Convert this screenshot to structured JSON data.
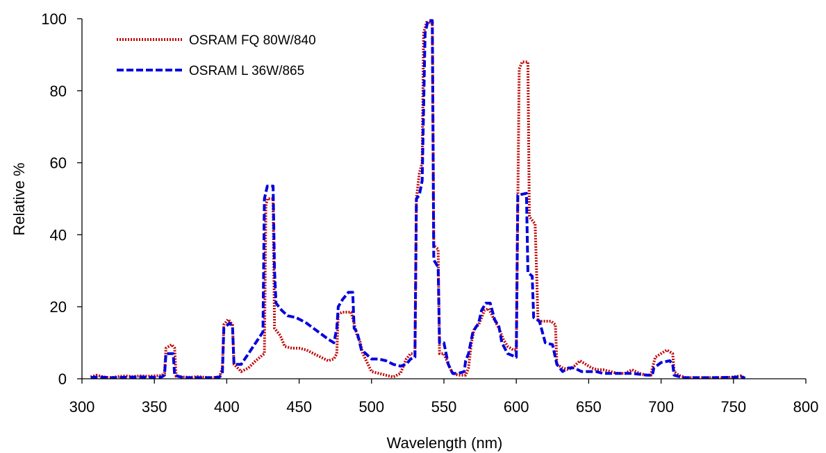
{
  "chart_data": {
    "type": "line",
    "title": "",
    "xlabel": "Wavelength (nm)",
    "ylabel": "Relative %",
    "xlim": [
      300,
      800
    ],
    "ylim": [
      0,
      100
    ],
    "xticks": [
      300,
      350,
      400,
      450,
      500,
      550,
      600,
      650,
      700,
      750,
      800
    ],
    "yticks": [
      0,
      20,
      40,
      60,
      80,
      100
    ],
    "grid": false,
    "legend_position": "top-left",
    "series": [
      {
        "name": "OSRAM FQ 80W/840",
        "color": "#c00000",
        "dash": "dotted",
        "points": [
          [
            306,
            0.5
          ],
          [
            310,
            1
          ],
          [
            315,
            0.5
          ],
          [
            320,
            0.3
          ],
          [
            325,
            0.6
          ],
          [
            330,
            0.8
          ],
          [
            335,
            0.6
          ],
          [
            340,
            0.8
          ],
          [
            345,
            0.7
          ],
          [
            350,
            0.8
          ],
          [
            355,
            0.9
          ],
          [
            357,
            1.5
          ],
          [
            358,
            8.5
          ],
          [
            362,
            9.5
          ],
          [
            364,
            8.5
          ],
          [
            365,
            0.7
          ],
          [
            370,
            0.5
          ],
          [
            375,
            0.4
          ],
          [
            380,
            0.6
          ],
          [
            385,
            0.4
          ],
          [
            390,
            0.3
          ],
          [
            395,
            0.5
          ],
          [
            397,
            3
          ],
          [
            398,
            15
          ],
          [
            401,
            16.5
          ],
          [
            404,
            15
          ],
          [
            405,
            4
          ],
          [
            410,
            2
          ],
          [
            415,
            3
          ],
          [
            420,
            5
          ],
          [
            426,
            7
          ],
          [
            427,
            48
          ],
          [
            428,
            50
          ],
          [
            432,
            50
          ],
          [
            433,
            14
          ],
          [
            437,
            12
          ],
          [
            440,
            9
          ],
          [
            445,
            8.5
          ],
          [
            450,
            8.5
          ],
          [
            455,
            8
          ],
          [
            460,
            7
          ],
          [
            465,
            6
          ],
          [
            470,
            5
          ],
          [
            474,
            5.5
          ],
          [
            476,
            7
          ],
          [
            477,
            18
          ],
          [
            480,
            18.5
          ],
          [
            486,
            18.5
          ],
          [
            490,
            12
          ],
          [
            492,
            10.5
          ],
          [
            494,
            7
          ],
          [
            497,
            4.5
          ],
          [
            500,
            2
          ],
          [
            505,
            1.5
          ],
          [
            510,
            1
          ],
          [
            515,
            0.5
          ],
          [
            520,
            1.5
          ],
          [
            524,
            5.5
          ],
          [
            527,
            7
          ],
          [
            530,
            7
          ],
          [
            531,
            50
          ],
          [
            533,
            57
          ],
          [
            535,
            60
          ],
          [
            536,
            96
          ],
          [
            538,
            99
          ],
          [
            542,
            99
          ],
          [
            543,
            37
          ],
          [
            546,
            36
          ],
          [
            547,
            7
          ],
          [
            550,
            7
          ],
          [
            553,
            4
          ],
          [
            556,
            1.5
          ],
          [
            560,
            1
          ],
          [
            565,
            1
          ],
          [
            567,
            3
          ],
          [
            569,
            10
          ],
          [
            571,
            14
          ],
          [
            574,
            15
          ],
          [
            576,
            17
          ],
          [
            578,
            19
          ],
          [
            581,
            19.5
          ],
          [
            584,
            17
          ],
          [
            588,
            14
          ],
          [
            591,
            11
          ],
          [
            594,
            9
          ],
          [
            598,
            8
          ],
          [
            600,
            8
          ],
          [
            602,
            86
          ],
          [
            604,
            88
          ],
          [
            608,
            88
          ],
          [
            609,
            45
          ],
          [
            611,
            44
          ],
          [
            613,
            43
          ],
          [
            615,
            16
          ],
          [
            620,
            16
          ],
          [
            624,
            16
          ],
          [
            627,
            15
          ],
          [
            628,
            4
          ],
          [
            632,
            3
          ],
          [
            636,
            2.5
          ],
          [
            640,
            3.5
          ],
          [
            644,
            5
          ],
          [
            648,
            4
          ],
          [
            652,
            3
          ],
          [
            656,
            2.5
          ],
          [
            660,
            2.5
          ],
          [
            665,
            2
          ],
          [
            670,
            1.5
          ],
          [
            675,
            1.5
          ],
          [
            680,
            2.5
          ],
          [
            685,
            1.5
          ],
          [
            690,
            1
          ],
          [
            693,
            1
          ],
          [
            694,
            3
          ],
          [
            696,
            6
          ],
          [
            700,
            7
          ],
          [
            704,
            8
          ],
          [
            708,
            7
          ],
          [
            709,
            2
          ],
          [
            712,
            1
          ],
          [
            717,
            0.3
          ],
          [
            725,
            0.3
          ],
          [
            735,
            0.3
          ],
          [
            745,
            0.3
          ],
          [
            750,
            0.5
          ],
          [
            755,
            0.8
          ],
          [
            758,
            0.2
          ]
        ]
      },
      {
        "name": "OSRAM L 36W/865",
        "color": "#0000dd",
        "dash": "dashed",
        "points": [
          [
            306,
            0.3
          ],
          [
            310,
            0.5
          ],
          [
            320,
            0.3
          ],
          [
            330,
            0.4
          ],
          [
            340,
            0.5
          ],
          [
            350,
            0.4
          ],
          [
            355,
            0.5
          ],
          [
            357,
            1
          ],
          [
            358,
            7
          ],
          [
            363,
            7
          ],
          [
            364,
            1
          ],
          [
            370,
            0.3
          ],
          [
            380,
            0.3
          ],
          [
            390,
            0.3
          ],
          [
            395,
            0.5
          ],
          [
            397,
            1.5
          ],
          [
            398,
            14
          ],
          [
            402,
            15.5
          ],
          [
            404,
            14.5
          ],
          [
            405,
            4
          ],
          [
            410,
            4
          ],
          [
            415,
            7
          ],
          [
            420,
            10
          ],
          [
            425,
            13
          ],
          [
            426,
            50
          ],
          [
            428,
            53.5
          ],
          [
            432,
            53.5
          ],
          [
            433,
            30
          ],
          [
            434,
            21
          ],
          [
            438,
            19
          ],
          [
            442,
            17.5
          ],
          [
            448,
            17
          ],
          [
            455,
            15.5
          ],
          [
            460,
            14
          ],
          [
            465,
            12.5
          ],
          [
            470,
            11
          ],
          [
            474,
            10
          ],
          [
            476,
            14
          ],
          [
            477,
            20
          ],
          [
            480,
            22
          ],
          [
            484,
            24
          ],
          [
            487,
            24
          ],
          [
            488,
            14
          ],
          [
            490,
            13
          ],
          [
            493,
            8
          ],
          [
            496,
            7
          ],
          [
            500,
            5.5
          ],
          [
            505,
            5.5
          ],
          [
            510,
            5
          ],
          [
            515,
            4
          ],
          [
            520,
            3.5
          ],
          [
            524,
            4
          ],
          [
            527,
            5.5
          ],
          [
            530,
            6
          ],
          [
            531,
            50
          ],
          [
            533,
            51
          ],
          [
            535,
            55
          ],
          [
            537,
            96
          ],
          [
            539,
            99.5
          ],
          [
            542,
            99.5
          ],
          [
            543,
            33
          ],
          [
            546,
            31
          ],
          [
            547,
            10
          ],
          [
            550,
            10
          ],
          [
            553,
            4
          ],
          [
            556,
            1.5
          ],
          [
            560,
            1.5
          ],
          [
            564,
            2
          ],
          [
            565,
            5
          ],
          [
            567,
            7
          ],
          [
            570,
            13
          ],
          [
            574,
            15.5
          ],
          [
            576,
            19
          ],
          [
            579,
            21
          ],
          [
            582,
            21
          ],
          [
            585,
            16.5
          ],
          [
            588,
            14.5
          ],
          [
            590,
            10
          ],
          [
            594,
            7
          ],
          [
            600,
            6
          ],
          [
            601,
            51
          ],
          [
            607,
            51.5
          ],
          [
            608,
            29.5
          ],
          [
            611,
            28.5
          ],
          [
            612,
            17
          ],
          [
            616,
            16
          ],
          [
            620,
            10
          ],
          [
            625,
            9.5
          ],
          [
            628,
            4
          ],
          [
            632,
            2
          ],
          [
            636,
            3
          ],
          [
            640,
            3
          ],
          [
            645,
            2
          ],
          [
            650,
            2
          ],
          [
            655,
            2
          ],
          [
            660,
            1.5
          ],
          [
            670,
            1.5
          ],
          [
            680,
            1.5
          ],
          [
            690,
            1
          ],
          [
            694,
            1
          ],
          [
            695,
            3
          ],
          [
            700,
            4.5
          ],
          [
            706,
            5
          ],
          [
            708,
            4
          ],
          [
            709,
            1
          ],
          [
            715,
            0.3
          ],
          [
            725,
            0.3
          ],
          [
            735,
            0.3
          ],
          [
            750,
            0.4
          ],
          [
            755,
            0.6
          ],
          [
            758,
            0.2
          ]
        ]
      }
    ]
  }
}
